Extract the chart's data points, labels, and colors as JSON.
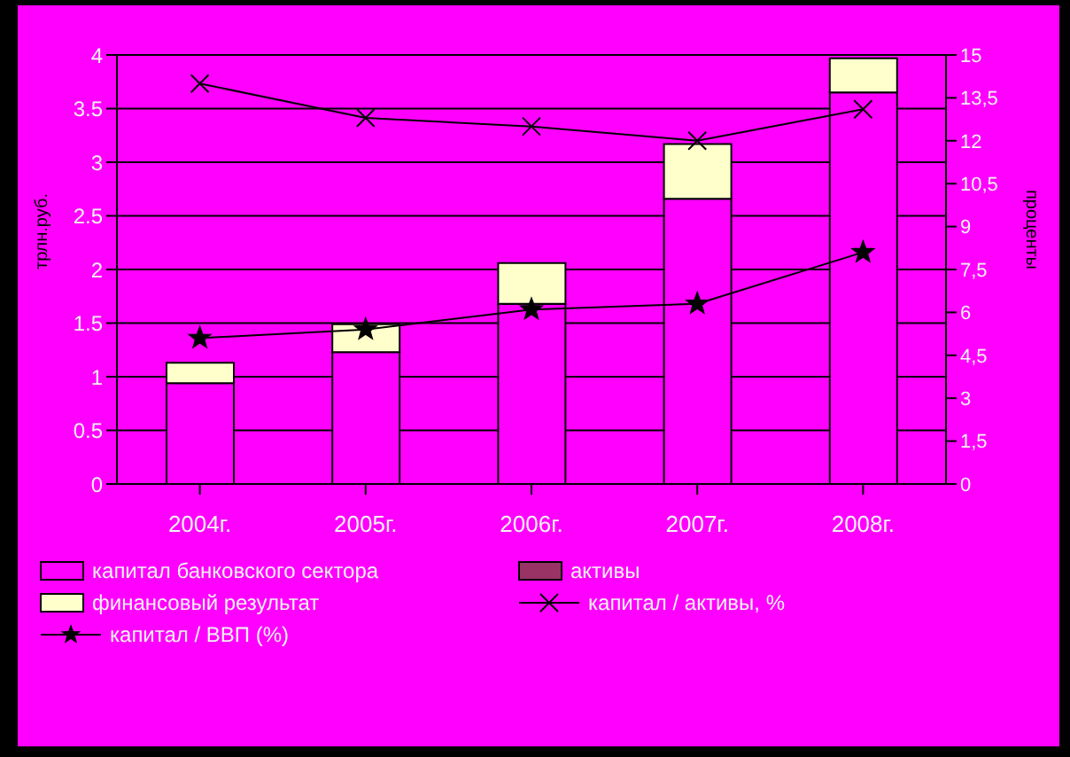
{
  "chart_data": {
    "type": "bar",
    "stacked": true,
    "categories": [
      "2004г.",
      "2005г.",
      "2006г.",
      "2007г.",
      "2008г."
    ],
    "ylabel": "трлн.руб.",
    "y2label": "проценты",
    "ylim": [
      0,
      4
    ],
    "yticks": [
      0,
      0.5,
      1,
      1.5,
      2,
      2.5,
      3,
      3.5,
      4
    ],
    "y2lim": [
      0,
      15
    ],
    "y2ticks": [
      0,
      {
        "value": 1.5,
        "label": "1,5"
      },
      3,
      {
        "value": 4.5,
        "label": "4,5"
      },
      6,
      {
        "value": 7.5,
        "label": "7,5"
      },
      9,
      {
        "value": 10.5,
        "label": "10,5"
      },
      12,
      {
        "value": 13.5,
        "label": "13,5"
      },
      15
    ],
    "grid": "y",
    "legend": "bottom",
    "series": [
      {
        "name": "капитал банковского сектора",
        "color": "#ff00ff",
        "values": [
          0.94,
          1.23,
          1.68,
          2.66,
          3.65
        ]
      },
      {
        "name": "активы",
        "color": "#993366",
        "values": [
          null,
          null,
          null,
          null,
          null
        ]
      },
      {
        "name": "финансовый результат",
        "color": "#ffffcc",
        "values": [
          0.19,
          0.26,
          0.38,
          0.51,
          0.32
        ]
      },
      {
        "name": "капитал / активы, %",
        "type": "line",
        "axis": "y2",
        "marker": "cross",
        "color": "#000000",
        "values": [
          14.0,
          12.8,
          12.5,
          12.0,
          13.1
        ]
      },
      {
        "name": "капитал / ВВП (%)",
        "type": "line",
        "axis": "y2",
        "marker": "star",
        "color": "#000000",
        "values": [
          5.1,
          5.4,
          6.1,
          6.3,
          8.1
        ]
      }
    ]
  }
}
